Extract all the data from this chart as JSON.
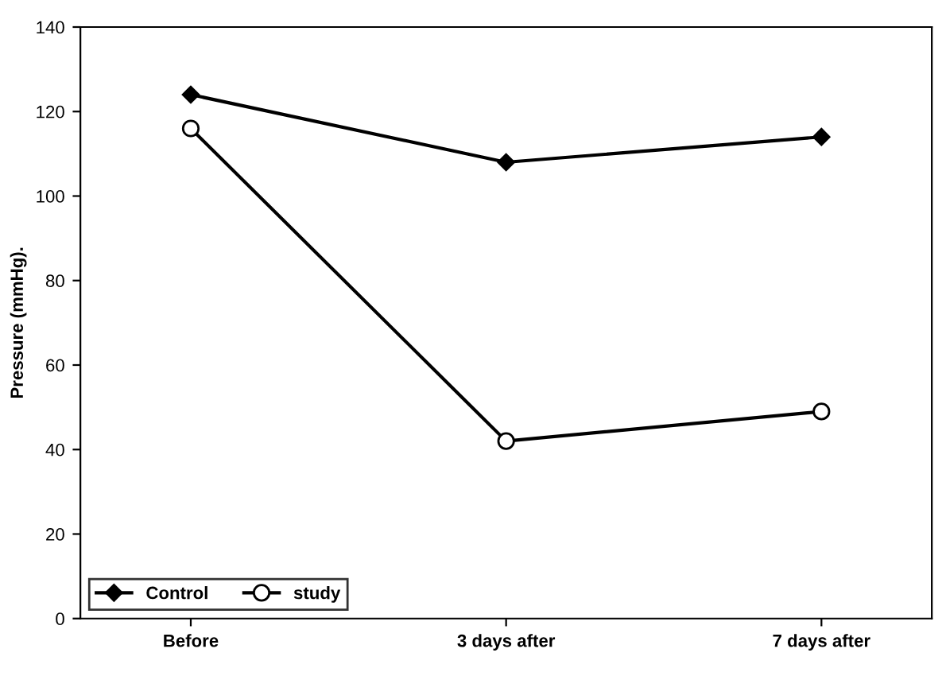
{
  "chart_data": {
    "type": "line",
    "ylabel": "Pressure (mmHg).",
    "categories": [
      "Before",
      "3 days after",
      "7 days after"
    ],
    "series": [
      {
        "name": "Control",
        "color": "#000000",
        "marker": "diamond",
        "values": [
          124,
          108,
          114
        ]
      },
      {
        "name": "study",
        "color": "#000000",
        "marker": "circle",
        "values": [
          116,
          42,
          49
        ]
      }
    ],
    "ylim": [
      0,
      140
    ],
    "yticks": [
      0,
      20,
      40,
      60,
      80,
      100,
      120,
      140
    ],
    "legend": "bottom left",
    "grid": false,
    "line_style": "solid"
  }
}
